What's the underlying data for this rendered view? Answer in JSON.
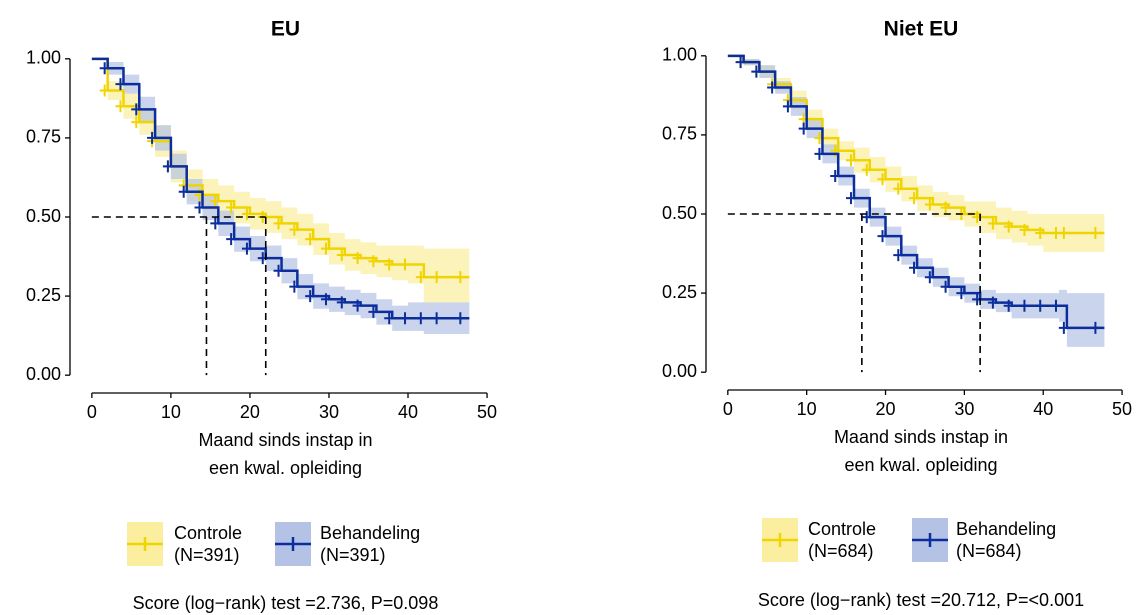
{
  "chart_data": [
    {
      "type": "line",
      "title": "EU",
      "step": true,
      "x_label": [
        "Maand sinds instap in",
        "een kwal. opleiding"
      ],
      "x": [
        0,
        2,
        4,
        6,
        8,
        10,
        12,
        14,
        16,
        18,
        20,
        22,
        24,
        26,
        28,
        30,
        32,
        34,
        36,
        38,
        40,
        42,
        44,
        47
      ],
      "xlim": [
        -1.5,
        50.5
      ],
      "xticks": [
        0,
        10,
        20,
        30,
        40,
        50
      ],
      "ylim": [
        -0.05,
        1.05
      ],
      "yticks": [
        {
          "value": 0,
          "label": "0.00"
        },
        {
          "value": 0.25,
          "label": "0.25"
        },
        {
          "value": 0.5,
          "label": "0.50"
        },
        {
          "value": 0.75,
          "label": "0.75"
        },
        {
          "value": 1,
          "label": "1.00"
        }
      ],
      "median_line": {
        "y": 0.5,
        "x": [
          14.5,
          22
        ]
      },
      "series": [
        {
          "name": "Controle",
          "n": "(N=391)",
          "color": "#f0d400",
          "band_color": "#fbee9e",
          "values": [
            1.0,
            0.9,
            0.85,
            0.8,
            0.74,
            0.66,
            0.6,
            0.57,
            0.55,
            0.53,
            0.51,
            0.5,
            0.48,
            0.46,
            0.43,
            0.4,
            0.38,
            0.37,
            0.36,
            0.35,
            0.35,
            0.31,
            0.31,
            0.31
          ],
          "lower": [
            1.0,
            0.87,
            0.81,
            0.76,
            0.69,
            0.61,
            0.55,
            0.52,
            0.5,
            0.48,
            0.46,
            0.45,
            0.43,
            0.41,
            0.38,
            0.35,
            0.33,
            0.32,
            0.31,
            0.3,
            0.29,
            0.23,
            0.23,
            0.23
          ],
          "upper": [
            1.0,
            0.93,
            0.89,
            0.84,
            0.79,
            0.71,
            0.65,
            0.62,
            0.6,
            0.58,
            0.56,
            0.55,
            0.53,
            0.51,
            0.48,
            0.45,
            0.43,
            0.42,
            0.41,
            0.41,
            0.41,
            0.4,
            0.4,
            0.4
          ]
        },
        {
          "name": "Behandeling",
          "n": "(N=391)",
          "color": "#0b2e9c",
          "band_color": "#b4c2e6",
          "values": [
            1.0,
            0.97,
            0.92,
            0.84,
            0.75,
            0.66,
            0.58,
            0.53,
            0.48,
            0.43,
            0.4,
            0.37,
            0.33,
            0.28,
            0.25,
            0.24,
            0.23,
            0.22,
            0.2,
            0.18,
            0.18,
            0.18,
            0.18,
            0.18
          ],
          "lower": [
            1.0,
            0.95,
            0.89,
            0.8,
            0.71,
            0.62,
            0.54,
            0.49,
            0.44,
            0.39,
            0.36,
            0.33,
            0.29,
            0.24,
            0.21,
            0.2,
            0.19,
            0.18,
            0.16,
            0.14,
            0.14,
            0.13,
            0.13,
            0.13
          ],
          "upper": [
            1.0,
            0.99,
            0.95,
            0.88,
            0.79,
            0.7,
            0.62,
            0.57,
            0.52,
            0.47,
            0.44,
            0.41,
            0.37,
            0.32,
            0.29,
            0.28,
            0.27,
            0.26,
            0.24,
            0.22,
            0.23,
            0.23,
            0.23,
            0.23
          ]
        }
      ],
      "test": "Score (log−rank) test =2.736, P=0.098"
    },
    {
      "type": "line",
      "title": "Niet EU",
      "step": true,
      "x_label": [
        "Maand sinds instap in",
        "een kwal. opleiding"
      ],
      "x": [
        0,
        2,
        4,
        6,
        8,
        10,
        12,
        14,
        16,
        18,
        20,
        22,
        24,
        26,
        28,
        30,
        32,
        34,
        36,
        38,
        40,
        42,
        43,
        47
      ],
      "xlim": [
        -1.5,
        50.5
      ],
      "xticks": [
        0,
        10,
        20,
        30,
        40,
        50
      ],
      "ylim": [
        -0.05,
        1.05
      ],
      "yticks": [
        {
          "value": 0,
          "label": "0.00"
        },
        {
          "value": 0.25,
          "label": "0.25"
        },
        {
          "value": 0.5,
          "label": "0.50"
        },
        {
          "value": 0.75,
          "label": "0.75"
        },
        {
          "value": 1,
          "label": "1.00"
        }
      ],
      "median_line": {
        "y": 0.5,
        "x": [
          17,
          32
        ]
      },
      "series": [
        {
          "name": "Controle",
          "n": "(N=684)",
          "color": "#f0d400",
          "band_color": "#fbee9e",
          "values": [
            1.0,
            0.98,
            0.95,
            0.91,
            0.86,
            0.8,
            0.74,
            0.7,
            0.67,
            0.64,
            0.61,
            0.58,
            0.55,
            0.53,
            0.52,
            0.5,
            0.49,
            0.47,
            0.46,
            0.45,
            0.44,
            0.44,
            0.44,
            0.44
          ],
          "lower": [
            1.0,
            0.97,
            0.93,
            0.89,
            0.83,
            0.77,
            0.71,
            0.67,
            0.63,
            0.6,
            0.57,
            0.54,
            0.51,
            0.49,
            0.48,
            0.46,
            0.44,
            0.42,
            0.41,
            0.4,
            0.38,
            0.38,
            0.38,
            0.38
          ],
          "upper": [
            1.0,
            0.99,
            0.97,
            0.93,
            0.89,
            0.83,
            0.77,
            0.73,
            0.71,
            0.68,
            0.65,
            0.62,
            0.59,
            0.57,
            0.56,
            0.54,
            0.54,
            0.52,
            0.51,
            0.5,
            0.5,
            0.5,
            0.5,
            0.5
          ]
        },
        {
          "name": "Behandeling",
          "n": "(N=684)",
          "color": "#0b2e9c",
          "band_color": "#b4c2e6",
          "values": [
            1.0,
            0.98,
            0.95,
            0.9,
            0.84,
            0.77,
            0.69,
            0.62,
            0.55,
            0.49,
            0.43,
            0.37,
            0.33,
            0.3,
            0.27,
            0.25,
            0.23,
            0.22,
            0.21,
            0.21,
            0.21,
            0.21,
            0.14,
            0.14
          ],
          "lower": [
            1.0,
            0.97,
            0.93,
            0.88,
            0.81,
            0.74,
            0.66,
            0.59,
            0.52,
            0.46,
            0.4,
            0.34,
            0.3,
            0.27,
            0.24,
            0.22,
            0.2,
            0.19,
            0.17,
            0.17,
            0.17,
            0.16,
            0.08,
            0.08
          ],
          "upper": [
            1.0,
            0.99,
            0.97,
            0.92,
            0.87,
            0.8,
            0.72,
            0.65,
            0.58,
            0.52,
            0.46,
            0.4,
            0.36,
            0.33,
            0.3,
            0.28,
            0.26,
            0.25,
            0.25,
            0.25,
            0.25,
            0.26,
            0.25,
            0.25
          ]
        }
      ],
      "test": "Score (log−rank) test =20.712, P=<0.001"
    }
  ]
}
